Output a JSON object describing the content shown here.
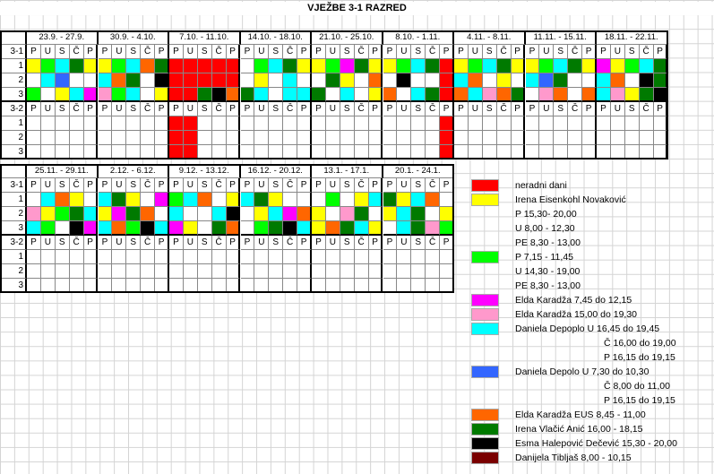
{
  "title": "VJEŽBE 3-1 RAZRED",
  "day_letters": [
    "P",
    "U",
    "S",
    "Č",
    "P"
  ],
  "tables": [
    {
      "weeks": [
        "23.9. - 27.9.",
        "30.9. - 4.10.",
        "7.10. - 11.10.",
        "14.10. - 18.10.",
        "21.10. - 25.10.",
        "8.10. - 1.11.",
        "4.11. - 8.11.",
        "11.11. - 15.11.",
        "18.11. - 22.11."
      ],
      "group_a": "3-1",
      "group_b": "3-2",
      "row_labels": [
        "1",
        "2",
        "3"
      ],
      "rows_a": [
        [
          "Y",
          "G",
          "C",
          "D",
          "Y",
          "Y",
          "G",
          "C",
          "O",
          "D",
          "R",
          "R",
          "R",
          "R",
          "R",
          "W",
          "G",
          "C",
          "D",
          "Y",
          "Y",
          "G",
          "M",
          "D",
          "Y",
          "Y",
          "G",
          "C",
          "D",
          "R",
          "Y",
          "G",
          "C",
          "D",
          "Y",
          "Y",
          "G",
          "C",
          "D",
          "Y",
          "M",
          "Y",
          "G",
          "C",
          "D"
        ],
        [
          "",
          "C",
          "B",
          "W",
          "",
          "C",
          "O",
          "D",
          "W",
          "K",
          "R",
          "R",
          "R",
          "R",
          "R",
          "W",
          "Y",
          "",
          "C",
          "",
          "W",
          "D",
          "Y",
          "W",
          "O",
          "",
          "K",
          "",
          "W",
          "R",
          "C",
          "O",
          "W",
          "Y",
          "",
          "C",
          "B",
          "D",
          "",
          "W",
          "C",
          "O",
          "W",
          "K",
          "D"
        ],
        [
          "G",
          "",
          "Y",
          "C",
          "M",
          "L",
          "G",
          "C",
          "",
          "Y",
          "R",
          "R",
          "D",
          "K",
          "O",
          "D",
          "C",
          "",
          "C",
          "C",
          "D",
          "",
          "C",
          "",
          "Y",
          "O",
          "W",
          "C",
          "D",
          "R",
          "O",
          "C",
          "L",
          "O",
          "D",
          "W",
          "L",
          "O",
          "W",
          "O",
          "C",
          "L",
          "Y",
          "D",
          "K"
        ]
      ],
      "rows_b": [
        [
          "",
          "",
          "",
          "",
          "",
          "",
          "",
          "",
          "",
          "",
          "R",
          "R",
          "",
          "",
          "",
          "",
          "",
          "",
          "",
          "",
          "",
          "",
          "",
          "",
          "",
          "",
          "",
          "",
          "",
          "R",
          "",
          "",
          "",
          "",
          "",
          "",
          "",
          "",
          "",
          "",
          "",
          "",
          "",
          "",
          ""
        ],
        [
          "",
          "",
          "",
          "",
          "",
          "",
          "",
          "",
          "",
          "",
          "R",
          "R",
          "",
          "",
          "",
          "",
          "",
          "",
          "",
          "",
          "",
          "",
          "",
          "",
          "",
          "",
          "",
          "",
          "",
          "R",
          "",
          "",
          "",
          "",
          "",
          "",
          "",
          "",
          "",
          "",
          "",
          "",
          "",
          "",
          ""
        ],
        [
          "",
          "",
          "",
          "",
          "",
          "",
          "",
          "",
          "",
          "",
          "R",
          "R",
          "",
          "",
          "",
          "",
          "",
          "",
          "",
          "",
          "",
          "",
          "",
          "",
          "",
          "",
          "",
          "",
          "",
          "R",
          "",
          "",
          "",
          "",
          "",
          "",
          "",
          "",
          "",
          "",
          "",
          "",
          "",
          "",
          ""
        ]
      ]
    },
    {
      "weeks": [
        "25.11. - 29.11.",
        "2.12. - 6.12.",
        "9.12. - 13.12.",
        "16.12. - 20.12.",
        "13.1. - 17.1.",
        "20.1. - 24.1."
      ],
      "group_a": "3-1",
      "group_b": "3-2",
      "row_labels": [
        "1",
        "2",
        "3"
      ],
      "rows_a": [
        [
          "",
          "C",
          "O",
          "Y",
          "",
          "C",
          "D",
          "Y",
          "",
          "M",
          "G",
          "C",
          "O",
          "W",
          "Y",
          "C",
          "D",
          "Y",
          "W",
          "",
          "W",
          "G",
          "",
          "Y",
          "C",
          "D",
          "Y",
          "C",
          "O",
          "W"
        ],
        [
          "L",
          "Y",
          "G",
          "D",
          "C",
          "Y",
          "M",
          "D",
          "O",
          "W",
          "C",
          "",
          "W",
          "C",
          "K",
          "",
          "Y",
          "C",
          "M",
          "O",
          "Y",
          "",
          "L",
          "D",
          "W",
          "Y",
          "C",
          "D",
          "",
          "Y"
        ],
        [
          "C",
          "G",
          "W",
          "K",
          "M",
          "C",
          "O",
          "G",
          "K",
          "C",
          "M",
          "Y",
          "",
          "D",
          "O",
          "W",
          "G",
          "D",
          "K",
          "C",
          "Y",
          "O",
          "D",
          "C",
          "Y",
          "W",
          "C",
          "D",
          "L",
          "G"
        ]
      ],
      "rows_b": [
        [
          "",
          "",
          "",
          "",
          "",
          "",
          "",
          "",
          "",
          "",
          "",
          "",
          "",
          "",
          "",
          "",
          "",
          "",
          "",
          "",
          "",
          "",
          "",
          "",
          "",
          "",
          "",
          "",
          "",
          ""
        ],
        [
          "",
          "",
          "",
          "",
          "",
          "",
          "",
          "",
          "",
          "",
          "",
          "",
          "",
          "",
          "",
          "",
          "",
          "",
          "",
          "",
          "",
          "",
          "",
          "",
          "",
          "",
          "",
          "",
          "",
          ""
        ],
        [
          "",
          "",
          "",
          "",
          "",
          "",
          "",
          "",
          "",
          "",
          "",
          "",
          "",
          "",
          "",
          "",
          "",
          "",
          "",
          "",
          "",
          "",
          "",
          "",
          "",
          "",
          "",
          "",
          "",
          ""
        ]
      ]
    }
  ],
  "colors": {
    "R": "#ff0000",
    "Y": "#ffff00",
    "G": "#00ff00",
    "M": "#ff00ff",
    "L": "#ff99cc",
    "C": "#00ffff",
    "B": "#3366ff",
    "O": "#ff6600",
    "D": "#007a00",
    "K": "#000000",
    "W": "#ffffff",
    "": "#ffffff"
  },
  "legend": [
    {
      "color": "#ff0000",
      "lines": [
        "neradni dani"
      ]
    },
    {
      "color": "#ffff00",
      "lines": [
        "Irena Eisenkohl Novaković",
        "P      15,30- 20,00",
        "U      8,00 - 12,30",
        "PE    8,30 - 13,00"
      ]
    },
    {
      "color": "#00ff00",
      "lines": [
        "P       7,15 - 11,45",
        "U       14,30 - 19,00",
        "PE    8,30 - 13,00"
      ]
    },
    {
      "color": "#ff00ff",
      "lines": [
        "Elda Karadža 7,45 do 12,15"
      ]
    },
    {
      "color": "#ff99cc",
      "lines": [
        "Elda Karadža 15,00 do 19,30"
      ]
    },
    {
      "color": "#00ffff",
      "lines": [
        "Daniela Depoplo U 16,45 do 19,45",
        "Č  16,00 do 19,00",
        "P  16,15 do 19,15"
      ]
    },
    {
      "color": "#3366ff",
      "lines": [
        "Daniela Depolo   U  7,30 do 10,30",
        "Č  8,00 do 11,00",
        "P  16,15 do 19,15"
      ]
    },
    {
      "color": "#ff6600",
      "lines": [
        "Elda Karadža EUS 8,45 - 11,00"
      ]
    },
    {
      "color": "#007a00",
      "lines": [
        "Irena Vlačić Anić 16,00 - 18,15"
      ]
    },
    {
      "color": "#000000",
      "lines": [
        "Esma Halepović Dečević 15,30 - 20,00"
      ]
    },
    {
      "color": "#7a0000",
      "lines": [
        "Danijela Tibljaš  8,00 - 10,15"
      ]
    }
  ]
}
